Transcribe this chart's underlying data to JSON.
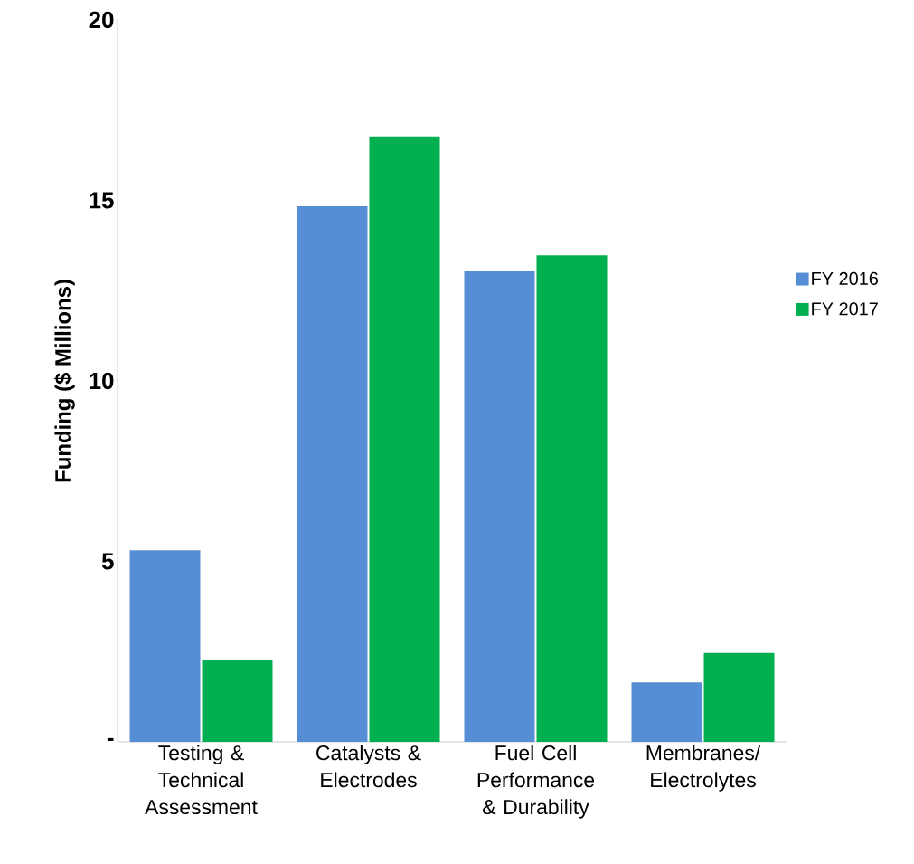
{
  "chart_data": {
    "type": "bar",
    "ylabel": "Funding ($ Millions)",
    "categories": [
      "Testing & Technical Assessment",
      "Catalysts & Electrodes",
      "Fuel Cell Performance & Durability",
      "Membranes/ Electrolytes"
    ],
    "series": [
      {
        "name": "FY 2016",
        "color": "#558ed5",
        "values": [
          5.31,
          14.84,
          13.06,
          1.65
        ]
      },
      {
        "name": "FY 2017",
        "color": "#00b050",
        "values": [
          2.26,
          16.77,
          13.48,
          2.46
        ]
      }
    ],
    "ylim": [
      0,
      20
    ],
    "yticks": [
      {
        "value": 0,
        "label": "-"
      },
      5,
      10,
      15,
      20
    ],
    "legend": "right",
    "grid": false
  }
}
